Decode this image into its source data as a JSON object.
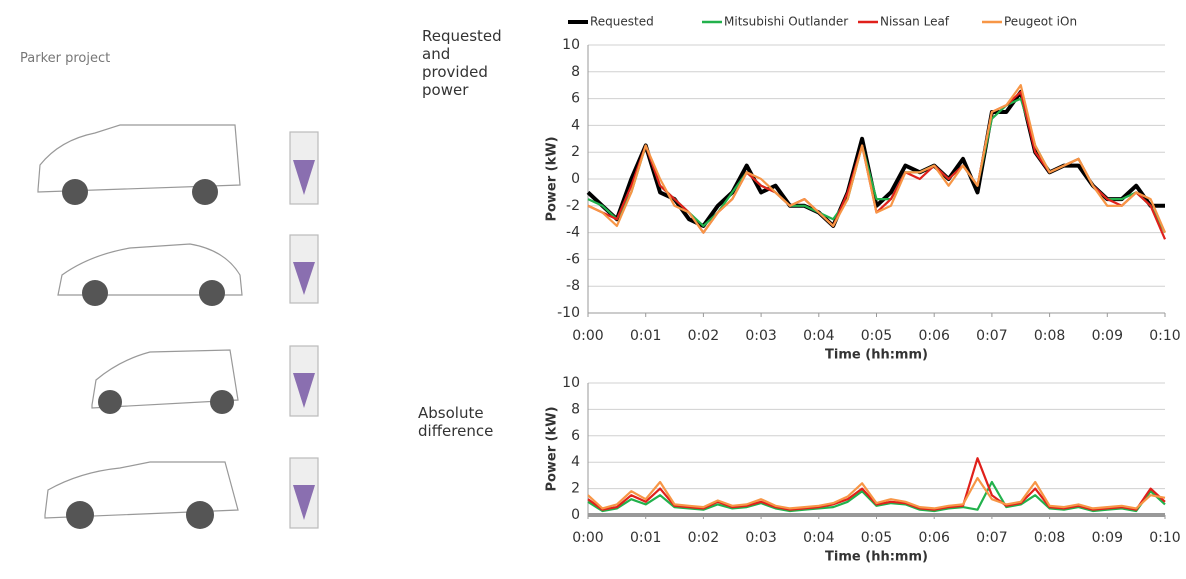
{
  "header": {
    "title": "Parker project"
  },
  "chart_data": [
    {
      "type": "line",
      "title": "Requested and provided power",
      "xlabel": "Time (hh:mm)",
      "ylabel": "Power (kW)",
      "x": [
        0,
        0.25,
        0.5,
        0.75,
        1,
        1.25,
        1.5,
        1.75,
        2,
        2.25,
        2.5,
        2.75,
        3,
        3.25,
        3.5,
        3.75,
        4,
        4.25,
        4.5,
        4.75,
        5,
        5.25,
        5.5,
        5.75,
        6,
        6.25,
        6.5,
        6.75,
        7,
        7.25,
        7.5,
        7.75,
        8,
        8.25,
        8.5,
        8.75,
        9,
        9.25,
        9.5,
        9.75,
        10
      ],
      "xlim": [
        0,
        10
      ],
      "xticks": [
        {
          "value": 0,
          "label": "0:00"
        },
        {
          "value": 1,
          "label": "0:01"
        },
        {
          "value": 2,
          "label": "0:02"
        },
        {
          "value": 3,
          "label": "0:03"
        },
        {
          "value": 4,
          "label": "0:04"
        },
        {
          "value": 5,
          "label": "0:05"
        },
        {
          "value": 6,
          "label": "0:06"
        },
        {
          "value": 7,
          "label": "0:07"
        },
        {
          "value": 8,
          "label": "0:08"
        },
        {
          "value": 9,
          "label": "0:09"
        },
        {
          "value": 10,
          "label": "0:10"
        }
      ],
      "ylim": [
        -10,
        10
      ],
      "yticks": [
        -10,
        -8,
        -6,
        -4,
        -2,
        0,
        2,
        4,
        6,
        8,
        10
      ],
      "grid": true,
      "legend": "top",
      "series": [
        {
          "name": "Requested",
          "color": "#000000",
          "values": [
            -1,
            -2,
            -3,
            0,
            2.5,
            -1,
            -1.5,
            -3,
            -3.5,
            -2,
            -1,
            1,
            -1,
            -0.5,
            -2,
            -2,
            -2.5,
            -3.5,
            -1,
            3,
            -2,
            -1,
            1,
            0.5,
            1,
            0,
            1.5,
            -1,
            5,
            5,
            6.5,
            2,
            0.5,
            1,
            1,
            -0.5,
            -1.5,
            -1.5,
            -0.5,
            -2,
            -2
          ]
        },
        {
          "name": "Mitsubishi Outlander",
          "color": "#22b14c",
          "values": [
            -1.5,
            -2,
            -3,
            -1,
            2.5,
            -0.5,
            -1.5,
            -2.5,
            -3.5,
            -2.5,
            -1,
            0.5,
            -0.5,
            -1,
            -2,
            -2,
            -2.5,
            -3,
            -1.5,
            2.5,
            -1.5,
            -1.5,
            0.5,
            0.5,
            1,
            0,
            1,
            -0.5,
            4.5,
            5.5,
            6,
            2.5,
            0.5,
            1,
            1.5,
            -0.5,
            -1.5,
            -1.5,
            -1,
            -2,
            -4
          ]
        },
        {
          "name": "Nissan Leaf",
          "color": "#e0201b",
          "values": [
            -2,
            -2.5,
            -3,
            -0.5,
            2.5,
            -0.5,
            -1.5,
            -2.5,
            -4,
            -2.5,
            -1.5,
            0.5,
            -0.5,
            -1,
            -2,
            -1.5,
            -2.5,
            -3.5,
            -1,
            2.5,
            -2.5,
            -1.5,
            0.5,
            0,
            1,
            0,
            1,
            -0.5,
            5,
            5.5,
            6.5,
            2,
            0.5,
            1,
            1.5,
            -0.5,
            -1.5,
            -2,
            -1,
            -2,
            -4.5
          ]
        },
        {
          "name": "Peugeot iOn",
          "color": "#f79646",
          "values": [
            -2,
            -2.5,
            -3.5,
            -1,
            2.5,
            0,
            -2,
            -2.5,
            -4,
            -2.5,
            -1.5,
            0.5,
            0,
            -1,
            -2,
            -1.5,
            -2.5,
            -3.5,
            -1.5,
            2.5,
            -2.5,
            -2,
            0.5,
            0.5,
            1,
            -0.5,
            1,
            -0.5,
            5,
            5.5,
            7,
            2.5,
            0.5,
            1,
            1.5,
            -0.5,
            -2,
            -2,
            -1,
            -1.5,
            -4
          ]
        }
      ]
    },
    {
      "type": "line",
      "title": "Absolute difference",
      "xlabel": "Time (hh:mm)",
      "ylabel": "Power (kW)",
      "x": [
        0,
        0.25,
        0.5,
        0.75,
        1,
        1.25,
        1.5,
        1.75,
        2,
        2.25,
        2.5,
        2.75,
        3,
        3.25,
        3.5,
        3.75,
        4,
        4.25,
        4.5,
        4.75,
        5,
        5.25,
        5.5,
        5.75,
        6,
        6.25,
        6.5,
        6.75,
        7,
        7.25,
        7.5,
        7.75,
        8,
        8.25,
        8.5,
        8.75,
        9,
        9.25,
        9.5,
        9.75,
        10
      ],
      "xlim": [
        0,
        10
      ],
      "xticks": [
        {
          "value": 0,
          "label": "0:00"
        },
        {
          "value": 1,
          "label": "0:01"
        },
        {
          "value": 2,
          "label": "0:02"
        },
        {
          "value": 3,
          "label": "0:03"
        },
        {
          "value": 4,
          "label": "0:04"
        },
        {
          "value": 5,
          "label": "0:05"
        },
        {
          "value": 6,
          "label": "0:06"
        },
        {
          "value": 7,
          "label": "0:07"
        },
        {
          "value": 8,
          "label": "0:08"
        },
        {
          "value": 9,
          "label": "0:09"
        },
        {
          "value": 10,
          "label": "0:10"
        }
      ],
      "ylim": [
        0,
        10
      ],
      "yticks": [
        0,
        2,
        4,
        6,
        8,
        10
      ],
      "grid": true,
      "series": [
        {
          "color": "#22b14c",
          "values": [
            1,
            0.3,
            0.5,
            1.2,
            0.8,
            1.5,
            0.6,
            0.5,
            0.4,
            0.8,
            0.5,
            0.6,
            0.9,
            0.5,
            0.3,
            0.4,
            0.5,
            0.6,
            1,
            1.8,
            0.7,
            0.9,
            0.8,
            0.4,
            0.3,
            0.5,
            0.6,
            0.4,
            2.5,
            0.6,
            0.8,
            1.5,
            0.5,
            0.4,
            0.6,
            0.3,
            0.4,
            0.5,
            0.3,
            1.8,
            0.8
          ]
        },
        {
          "color": "#e0201b",
          "values": [
            1.2,
            0.4,
            0.6,
            1.5,
            1,
            2,
            0.7,
            0.6,
            0.5,
            1,
            0.6,
            0.7,
            1,
            0.6,
            0.4,
            0.5,
            0.6,
            0.8,
            1.2,
            2,
            0.8,
            1,
            0.9,
            0.5,
            0.4,
            0.6,
            0.7,
            4.3,
            1.5,
            0.7,
            0.9,
            2,
            0.6,
            0.5,
            0.7,
            0.4,
            0.5,
            0.6,
            0.4,
            2,
            1
          ]
        },
        {
          "color": "#f79646",
          "values": [
            1.5,
            0.5,
            0.8,
            1.8,
            1.2,
            2.5,
            0.8,
            0.7,
            0.6,
            1.1,
            0.7,
            0.8,
            1.2,
            0.7,
            0.5,
            0.6,
            0.7,
            0.9,
            1.4,
            2.4,
            0.9,
            1.2,
            1,
            0.6,
            0.5,
            0.7,
            0.8,
            2.8,
            1.2,
            0.8,
            1,
            2.5,
            0.7,
            0.6,
            0.8,
            0.5,
            0.6,
            0.7,
            0.5,
            1.5,
            1.3
          ]
        }
      ]
    }
  ]
}
